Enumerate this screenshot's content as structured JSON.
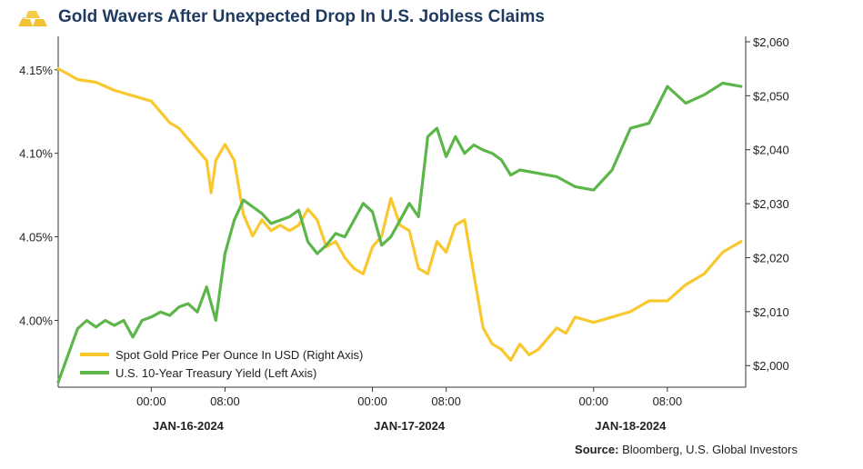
{
  "header": {
    "title": "Gold Wavers After Unexpected Drop In U.S. Jobless Claims",
    "icon": "gold-bars-icon"
  },
  "source": {
    "label": "Source:",
    "text": "Bloomberg, U.S. Global Investors"
  },
  "chart_data": {
    "type": "line",
    "title": "Gold Wavers After Unexpected Drop In U.S. Jobless Claims",
    "x_ticks": [
      "00:00",
      "08:00",
      "00:00",
      "08:00",
      "00:00",
      "08:00"
    ],
    "x_dates": [
      "JAN-16-2024",
      "JAN-17-2024",
      "JAN-18-2024"
    ],
    "x_range_hours": [
      -10.1,
      64.5
    ],
    "left_axis": {
      "ticks": [
        "4.00%",
        "4.05%",
        "4.10%",
        "4.15%"
      ],
      "values": [
        4.0,
        4.05,
        4.1,
        4.15
      ],
      "range": [
        3.96,
        4.17
      ]
    },
    "right_axis": {
      "ticks": [
        "$2,000",
        "$2,010",
        "$2,020",
        "$2,030",
        "$2,040",
        "$2,050",
        "$2,060"
      ],
      "values": [
        2000,
        2010,
        2020,
        2030,
        2040,
        2050,
        2060
      ],
      "range": [
        1996,
        2061
      ]
    },
    "grid": false,
    "legend": "bottom-left",
    "series": [
      {
        "name": "Spot Gold Price Per Ounce In USD (Right Axis)",
        "axis": "right",
        "color": "#f9c72e",
        "x_hours": [
          -10.1,
          -9,
          -8,
          -6,
          -4,
          -2,
          0,
          2,
          3,
          4,
          5,
          6,
          6.5,
          7,
          8,
          9,
          10,
          11,
          12,
          13,
          14,
          15,
          16,
          17,
          18,
          19,
          20,
          21,
          22,
          23,
          24,
          25,
          26,
          27,
          28,
          29,
          30,
          31,
          32,
          33,
          34,
          35,
          36,
          37,
          38,
          39,
          40,
          41,
          42,
          43,
          44,
          45,
          46,
          48,
          50,
          52,
          54,
          56,
          58,
          60,
          62,
          64
        ],
        "values": [
          2055,
          2054,
          2053,
          2052.5,
          2051,
          2050,
          2049,
          2045,
          2044,
          2042,
          2040,
          2038,
          2032,
          2038,
          2041,
          2038,
          2028,
          2024,
          2027,
          2025,
          2026,
          2025,
          2026,
          2029,
          2027,
          2022,
          2023,
          2020,
          2018,
          2017,
          2022,
          2024,
          2031,
          2026,
          2025,
          2018,
          2017,
          2023,
          2021,
          2026,
          2027,
          2017,
          2007,
          2004,
          2003,
          2001,
          2004,
          2002,
          2003,
          2005,
          2007,
          2006,
          2009,
          2008,
          2009,
          2010,
          2012,
          2012,
          2015,
          2017,
          2021,
          2023
        ]
      },
      {
        "name": "U.S. 10-Year Treasury Yield (Left Axis)",
        "axis": "left",
        "color": "#5cb64a",
        "x_hours": [
          -10.1,
          -8,
          -7,
          -6,
          -5,
          -4,
          -3,
          -2,
          -1,
          0,
          1,
          2,
          3,
          4,
          5,
          6,
          7,
          8,
          9,
          10,
          11,
          12,
          13,
          14,
          15,
          16,
          17,
          18,
          19,
          20,
          21,
          22,
          23,
          24,
          25,
          26,
          27,
          28,
          29,
          30,
          31,
          32,
          33,
          34,
          35,
          36,
          37,
          38,
          39,
          40,
          42,
          44,
          46,
          48,
          50,
          52,
          54,
          56,
          58,
          60,
          62,
          64
        ],
        "values": [
          3.963,
          3.995,
          4.0,
          3.996,
          4.0,
          3.997,
          4.0,
          3.99,
          4.0,
          4.002,
          4.005,
          4.003,
          4.008,
          4.01,
          4.005,
          4.02,
          4.0,
          4.04,
          4.06,
          4.072,
          4.068,
          4.064,
          4.058,
          4.06,
          4.062,
          4.066,
          4.047,
          4.04,
          4.045,
          4.052,
          4.05,
          4.06,
          4.07,
          4.065,
          4.045,
          4.05,
          4.06,
          4.07,
          4.062,
          4.11,
          4.115,
          4.098,
          4.11,
          4.1,
          4.105,
          4.102,
          4.1,
          4.096,
          4.087,
          4.09,
          4.088,
          4.086,
          4.08,
          4.078,
          4.09,
          4.115,
          4.118,
          4.14,
          4.13,
          4.135,
          4.142,
          4.14
        ]
      }
    ]
  }
}
